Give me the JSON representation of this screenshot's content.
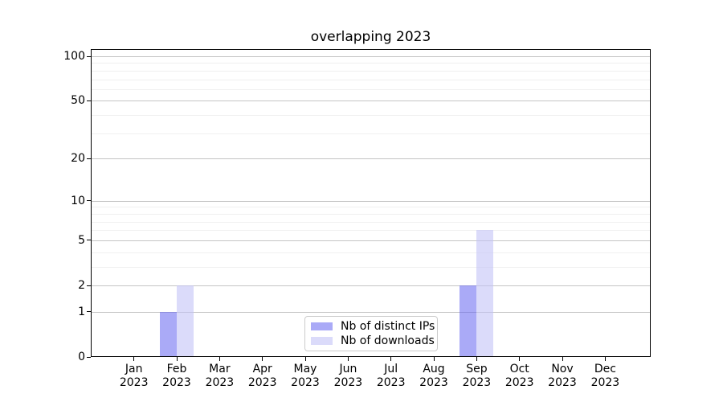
{
  "chart_data": {
    "type": "bar",
    "title": "overlapping 2023",
    "months": [
      "Jan",
      "Feb",
      "Mar",
      "Apr",
      "May",
      "Jun",
      "Jul",
      "Aug",
      "Sep",
      "Oct",
      "Nov",
      "Dec"
    ],
    "year_label": "2023",
    "categories": [
      "Jan 2023",
      "Feb 2023",
      "Mar 2023",
      "Apr 2023",
      "May 2023",
      "Jun 2023",
      "Jul 2023",
      "Aug 2023",
      "Sep 2023",
      "Oct 2023",
      "Nov 2023",
      "Dec 2023"
    ],
    "series": [
      {
        "name": "Nb of distinct IPs",
        "color": "rgba(100,100,240,0.55)",
        "solid_hex": "#a9a9f7",
        "values": [
          0,
          1,
          0,
          0,
          0,
          0,
          0,
          0,
          2,
          0,
          0,
          0
        ]
      },
      {
        "name": "Nb of downloads",
        "color": "rgba(195,195,247,0.60)",
        "solid_hex": "#dbdbf9",
        "values": [
          0,
          2,
          0,
          0,
          0,
          0,
          0,
          0,
          6,
          0,
          0,
          0
        ]
      }
    ],
    "yscale": "log1p",
    "ylim": [
      0,
      112
    ],
    "yticks": [
      0,
      1,
      2,
      5,
      10,
      20,
      50,
      100
    ],
    "minor_gridlines": [
      3,
      4,
      6,
      7,
      8,
      9,
      30,
      40,
      60,
      70,
      80,
      90
    ],
    "grid": true,
    "legend_position": "lower center",
    "style": {
      "major_grid_color": "#c4c4c4",
      "minor_grid_color": "#f0f0f0",
      "spine_color": "#000000",
      "background": "#ffffff"
    }
  }
}
